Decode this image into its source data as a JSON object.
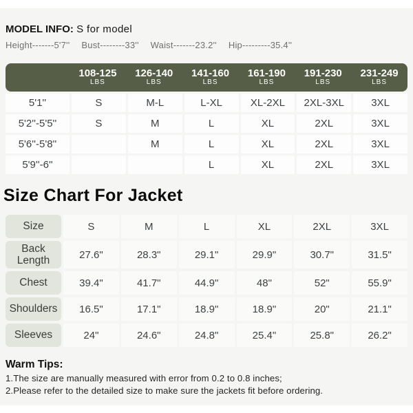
{
  "model_info": {
    "label": "MODEL INFO:",
    "value": "S for model",
    "measurements": [
      "Height-------5'7''",
      "Bust--------33''",
      "Waist-------23.2''",
      "Hip---------35.4''"
    ]
  },
  "weight_table": {
    "columns": [
      {
        "range": "108-125",
        "unit": "LBS"
      },
      {
        "range": "126-140",
        "unit": "LBS"
      },
      {
        "range": "141-160",
        "unit": "LBS"
      },
      {
        "range": "161-190",
        "unit": "LBS"
      },
      {
        "range": "191-230",
        "unit": "LBS"
      },
      {
        "range": "231-249",
        "unit": "LBS"
      }
    ],
    "rows": [
      {
        "height": "5'1''",
        "sizes": [
          "S",
          "M-L",
          "L-XL",
          "XL-2XL",
          "2XL-3XL",
          "3XL"
        ]
      },
      {
        "height": "5'2''-5'5''",
        "sizes": [
          "S",
          "M",
          "L",
          "XL",
          "2XL",
          "3XL"
        ]
      },
      {
        "height": "5'6''-5'8''",
        "sizes": [
          "",
          "M",
          "L",
          "XL",
          "2XL",
          "3XL"
        ]
      },
      {
        "height": "5'9''-6''",
        "sizes": [
          "",
          "",
          "L",
          "XL",
          "2XL",
          "3XL"
        ]
      }
    ]
  },
  "section_title": "Size Chart For Jacket",
  "size_chart": {
    "header_label": "Size",
    "sizes": [
      "S",
      "M",
      "L",
      "XL",
      "2XL",
      "3XL"
    ],
    "rows": [
      {
        "label": "Back Length",
        "values": [
          "27.6\"",
          "28.3\"",
          "29.1\"",
          "29.9\"",
          "30.7\"",
          "31.5\""
        ]
      },
      {
        "label": "Chest",
        "values": [
          "39.4\"",
          "41.7\"",
          "44.9\"",
          "48\"",
          "52\"",
          "55.9\""
        ]
      },
      {
        "label": "Shoulders",
        "values": [
          "16.5\"",
          "17.1\"",
          "18.9\"",
          "18.9\"",
          "20\"",
          "21.1\""
        ]
      },
      {
        "label": "Sleeves",
        "values": [
          "24\"",
          "24.6\"",
          "24.8\"",
          "25.4\"",
          "25.8\"",
          "26.2\""
        ]
      }
    ]
  },
  "warm_tips": {
    "title": "Warm Tips:",
    "lines": [
      "1.The size are manually measured with error from 0.2 to 0.8 inches;",
      "2.Please refer to the detailed size to make sure the jackets fit before ordering."
    ]
  },
  "colors": {
    "header_green": "#565e48",
    "label_sage": "#e1e5dc",
    "panel_bg": "#f5f6f4"
  }
}
